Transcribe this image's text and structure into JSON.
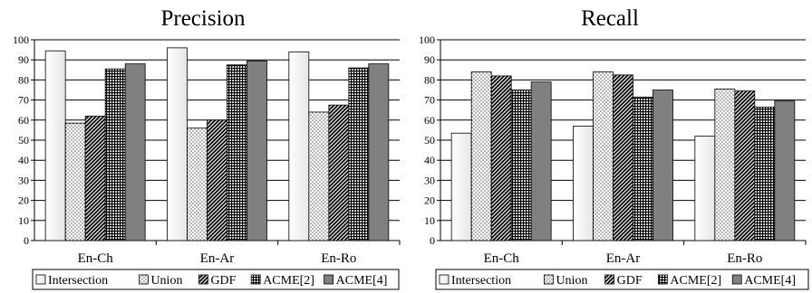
{
  "legend": [
    "Intersection",
    "Union",
    "GDF",
    "ACME[2]",
    "ACME[4]"
  ],
  "series_styles": [
    "white",
    "dots",
    "diag",
    "grid",
    "gray"
  ],
  "colors": {
    "bar_stroke": "#000000",
    "gray_fill": "#808080",
    "white_fill": "#f4f4f4",
    "grid_line": "#000000"
  },
  "chart_data": [
    {
      "type": "bar",
      "title": "Precision",
      "categories": [
        "En-Ch",
        "En-Ar",
        "En-Ro"
      ],
      "yticks": [
        "0",
        "10",
        "20",
        "30",
        "40",
        "50",
        "60",
        "70",
        "80",
        "90",
        "100"
      ],
      "ylim": [
        0,
        100
      ],
      "grid": true,
      "legend_position": "bottom",
      "series": [
        {
          "name": "Intersection",
          "values": [
            94.5,
            96,
            94
          ]
        },
        {
          "name": "Union",
          "values": [
            58.5,
            56,
            64
          ]
        },
        {
          "name": "GDF",
          "values": [
            62,
            60,
            67.5
          ]
        },
        {
          "name": "ACME[2]",
          "values": [
            85.5,
            87.5,
            86
          ]
        },
        {
          "name": "ACME[4]",
          "values": [
            88,
            89.5,
            88
          ]
        }
      ]
    },
    {
      "type": "bar",
      "title": "Recall",
      "categories": [
        "En-Ch",
        "En-Ar",
        "En-Ro"
      ],
      "yticks": [
        "0",
        "10",
        "20",
        "30",
        "40",
        "50",
        "60",
        "70",
        "80",
        "90",
        "100"
      ],
      "ylim": [
        0,
        100
      ],
      "grid": true,
      "legend_position": "bottom",
      "series": [
        {
          "name": "Intersection",
          "values": [
            53.5,
            57,
            52
          ]
        },
        {
          "name": "Union",
          "values": [
            84,
            84,
            75.5
          ]
        },
        {
          "name": "GDF",
          "values": [
            82,
            82.5,
            74.5
          ]
        },
        {
          "name": "ACME[2]",
          "values": [
            75,
            71.5,
            66.5
          ]
        },
        {
          "name": "ACME[4]",
          "values": [
            79,
            75,
            69.5
          ]
        }
      ]
    }
  ]
}
